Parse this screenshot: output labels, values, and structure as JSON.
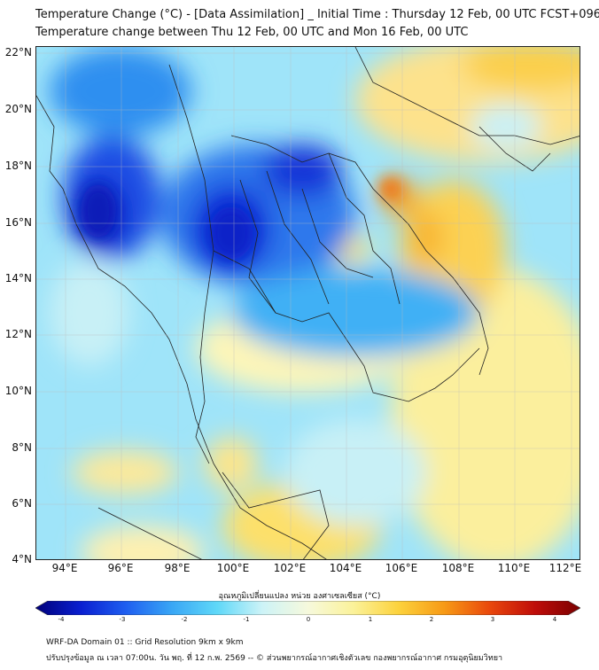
{
  "title": {
    "line1": "Temperature Change (°C) - [Data Assimilation] _ Initial Time : Thursday 12 Feb, 00 UTC FCST+096",
    "line2": "Temperature change between Thu 12 Feb, 00 UTC and Mon 16 Feb, 00 UTC"
  },
  "axes": {
    "lat_labels": [
      "22°N",
      "20°N",
      "18°N",
      "16°N",
      "14°N",
      "12°N",
      "10°N",
      "8°N",
      "6°N",
      "4°N"
    ],
    "lon_labels": [
      "94°E",
      "96°E",
      "98°E",
      "100°E",
      "102°E",
      "104°E",
      "106°E",
      "108°E",
      "110°E",
      "112°E"
    ],
    "lat_range": [
      4,
      22.2
    ],
    "lon_range": [
      93,
      112.5
    ]
  },
  "colorbar": {
    "title": "อุณหภูมิเปลี่ยนแปลง หน่วย องศาเซลเซียส (°C)",
    "ticks": [
      "-4",
      "-3",
      "-2",
      "-1",
      "0",
      "1",
      "2",
      "3",
      "4"
    ],
    "range": [
      -4,
      4
    ],
    "colors": [
      "#00007a",
      "#0a1fd0",
      "#1f5ff0",
      "#39a6f5",
      "#5fd8f8",
      "#cdf3f7",
      "#f6f9dc",
      "#fbf29a",
      "#fcd23c",
      "#f79a16",
      "#e9480c",
      "#bf0d0a",
      "#7a0000"
    ]
  },
  "footer": {
    "line1": "WRF-DA Domain 01 :: Grid Resolution 9km x 9km",
    "line2": "ปรับปรุงข้อมูล ณ เวลา 07:00น. วัน พฤ. ที่ 12 ก.พ. 2569 -- © ส่วนพยากรณ์อากาศเชิงตัวเลข กองพยากรณ์อากาศ กรมอุตุนิยมวิทยา"
  },
  "colors": {
    "cold_strong": "#1033d8",
    "cold": "#2bb3f4",
    "neutral": "#c8f0f6",
    "warm": "#fde58a",
    "warm_strong": "#f6a41c"
  }
}
